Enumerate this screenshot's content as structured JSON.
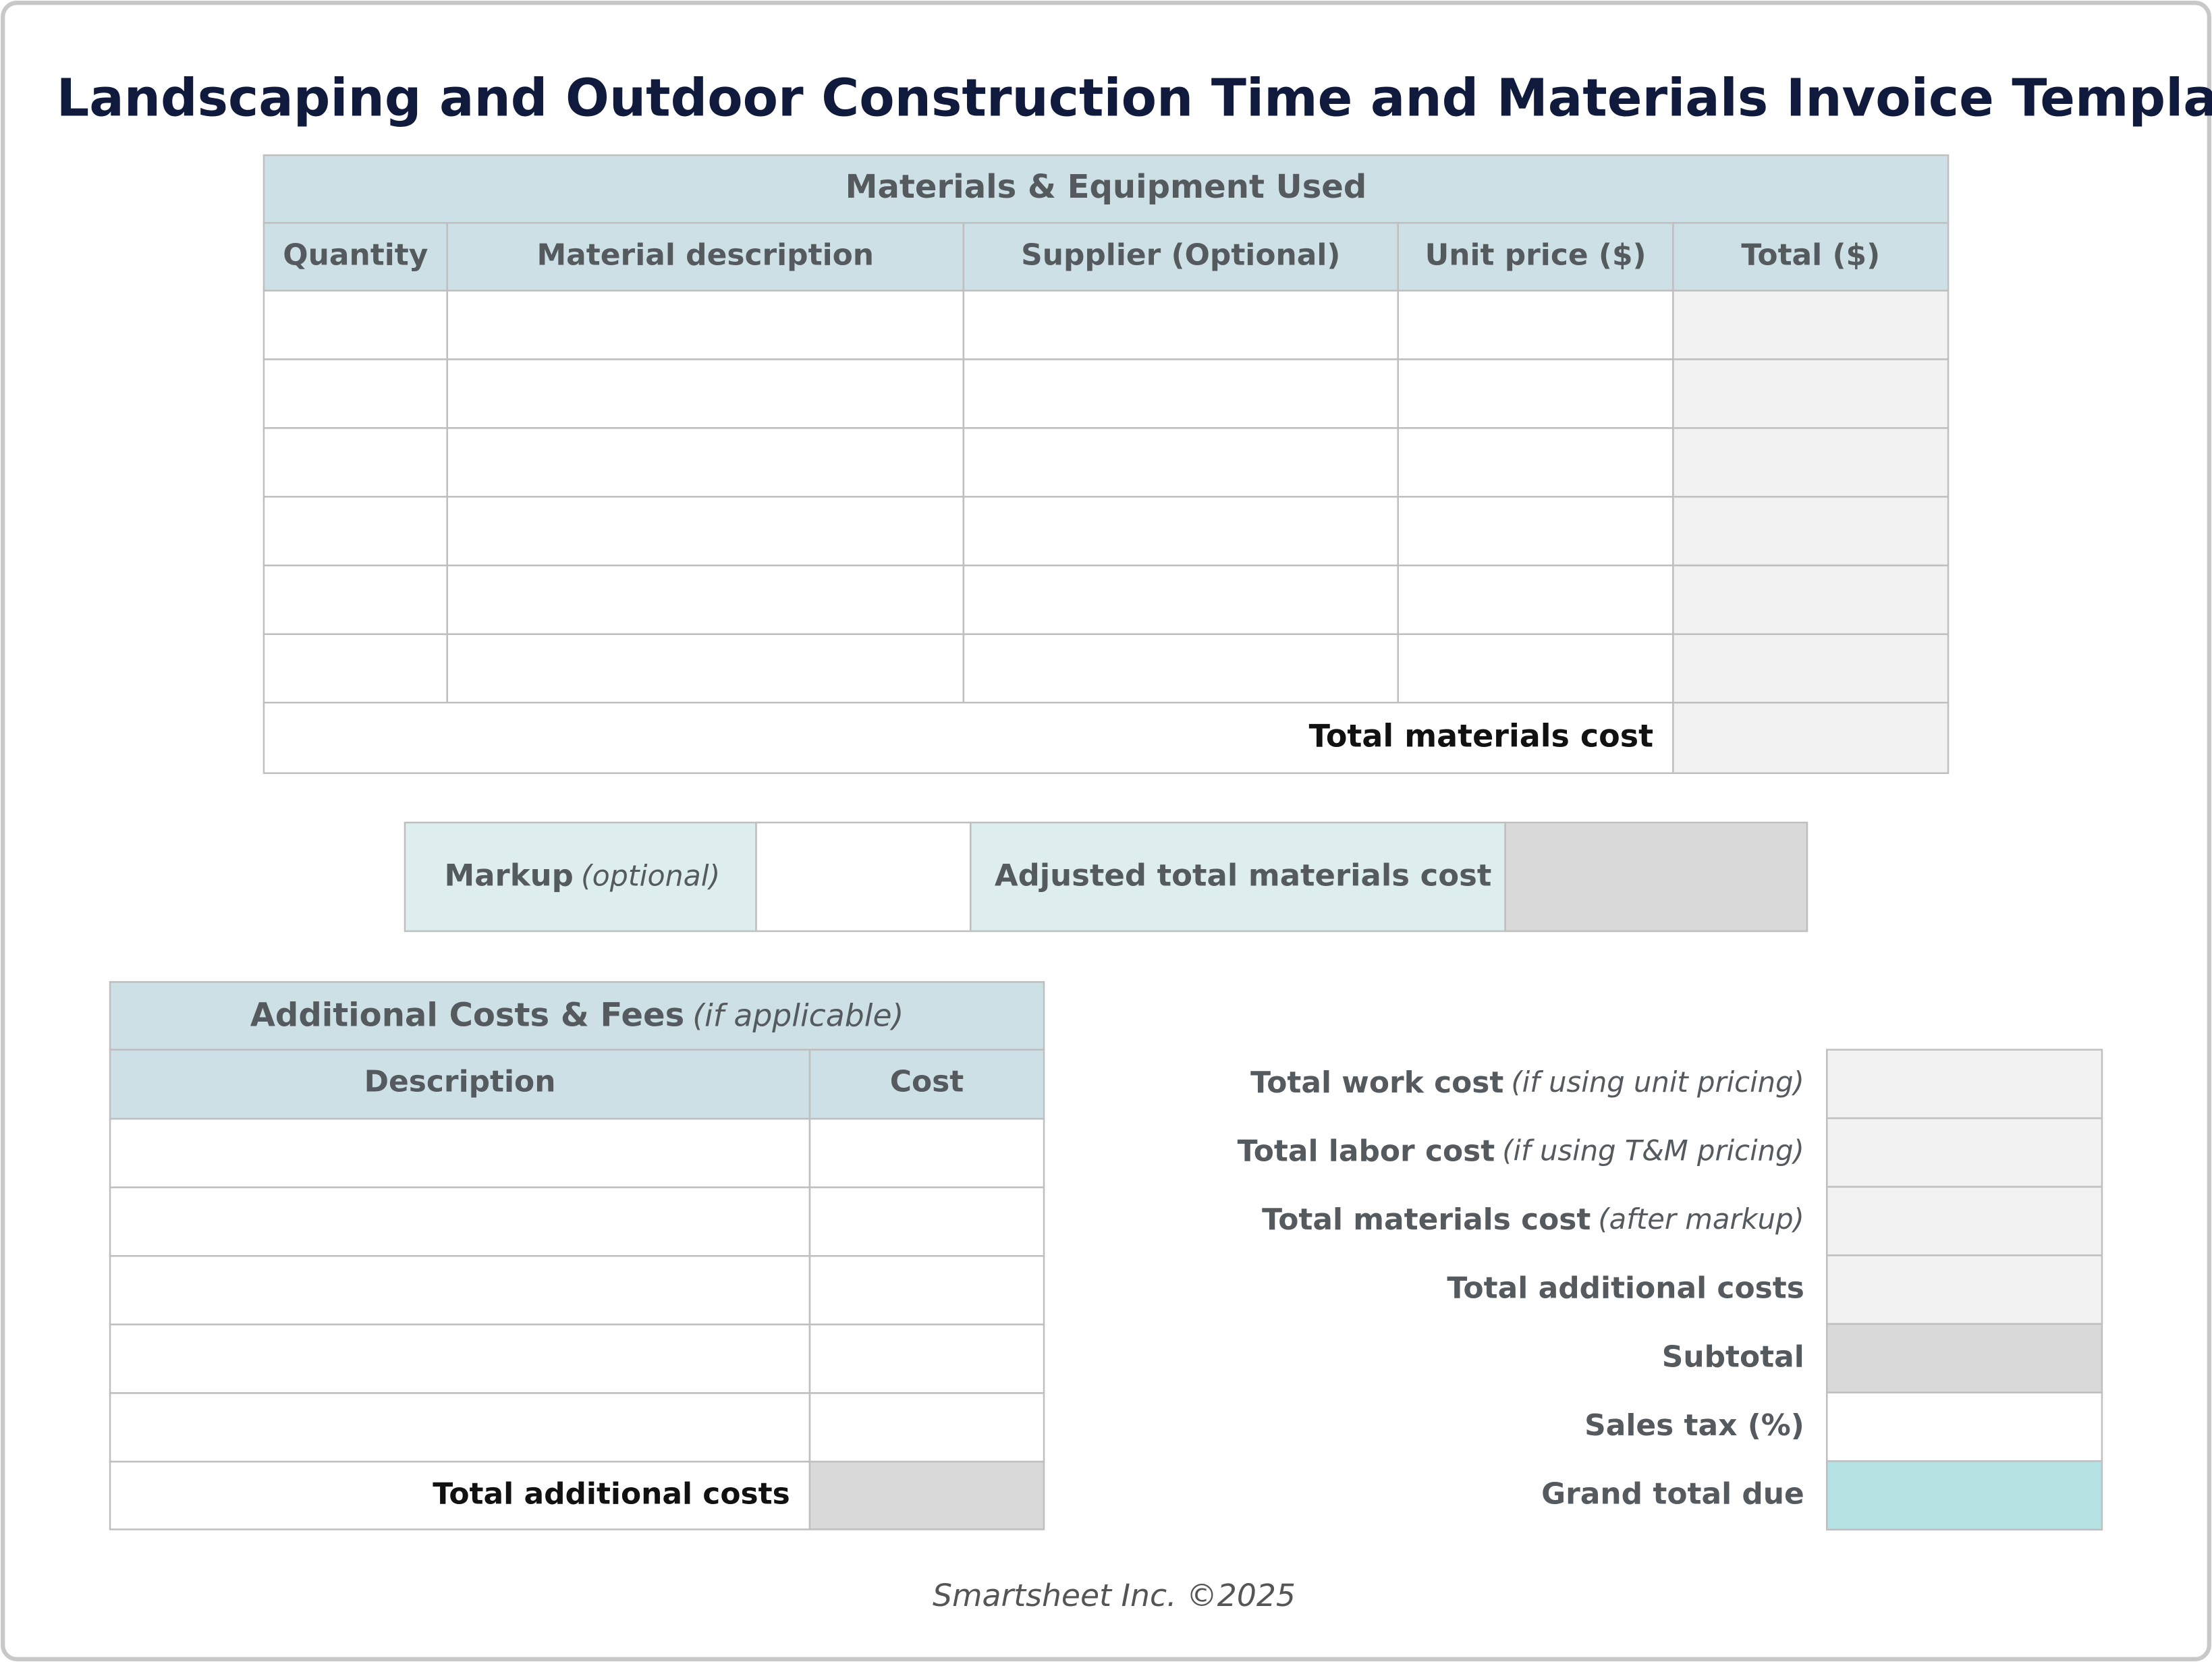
{
  "title": "Landscaping and Outdoor Construction Time and Materials Invoice Template",
  "materials": {
    "title": "Materials & Equipment Used",
    "columns": [
      "Quantity",
      "Material description",
      "Supplier (Optional)",
      "Unit price ($)",
      "Total ($)"
    ],
    "total_label": "Total materials cost"
  },
  "markup": {
    "label": "Markup",
    "note": "(optional)",
    "adjusted_label": "Adjusted total materials cost"
  },
  "additional": {
    "title": "Additional Costs & Fees",
    "note": "(if applicable)",
    "columns": [
      "Description",
      "Cost"
    ],
    "total_label": "Total additional costs"
  },
  "summary": [
    {
      "label": "Total work cost",
      "note": "(if using unit pricing)"
    },
    {
      "label": "Total labor cost",
      "note": "(if using T&M pricing)"
    },
    {
      "label": "Total materials cost",
      "note": "(after markup)"
    },
    {
      "label": "Total additional costs"
    },
    {
      "label": "Subtotal"
    },
    {
      "label": "Sales tax (%)"
    },
    {
      "label": "Grand total due"
    }
  ],
  "footer": "Smartsheet Inc. ©2025"
}
